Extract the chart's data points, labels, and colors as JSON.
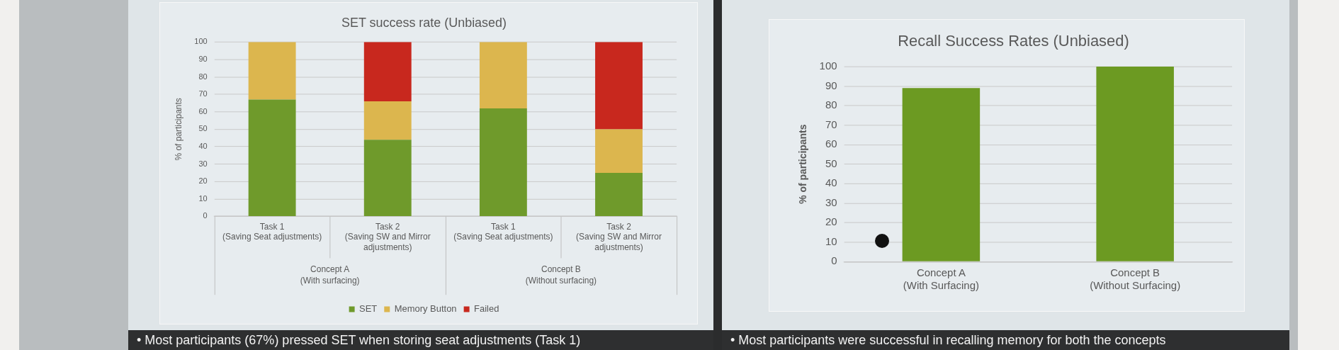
{
  "chart_data": [
    {
      "type": "bar",
      "title": "SET success rate (Unbiased)",
      "ylabel": "% of participants",
      "categories": [
        "Task 1 (Saving Seat adjustments)",
        "Task 2 (Saving SW and Mirror adjustments)",
        "Task 1 (Saving Seat adjustments)",
        "Task 2 (Saving SW and Mirror adjustments)"
      ],
      "series": [
        {
          "name": "SET",
          "color": "#6f9a2b",
          "values": [
            67,
            44,
            62,
            25
          ]
        },
        {
          "name": "Memory Button",
          "color": "#dcb64e",
          "values": [
            33,
            22,
            38,
            25
          ]
        },
        {
          "name": "Failed",
          "color": "#c8281e",
          "values": [
            0,
            34,
            0,
            50
          ]
        }
      ],
      "stacked": true,
      "ylim": [
        0,
        100
      ],
      "yticks": [
        0,
        10,
        20,
        30,
        40,
        50,
        60,
        70,
        80,
        90,
        100
      ],
      "grid": "y",
      "legend": "bottom",
      "annotations": [
        "Concept A (With surfacing)",
        "Concept B (Without surfacing)"
      ]
    },
    {
      "type": "bar",
      "title": "Recall Success Rates (Unbiased)",
      "ylabel": "% of participants",
      "categories": [
        "Concept A (With Surfacing)",
        "Concept B (Without Surfacing)"
      ],
      "values": [
        89,
        100
      ],
      "color": "#6c9a22",
      "ylim": [
        0,
        100
      ],
      "yticks": [
        0,
        10,
        20,
        30,
        40,
        50,
        60,
        70,
        80,
        90,
        100
      ],
      "grid": "y"
    },
    {
      "type": "other",
      "annotations": [
        "• Most participants (67%) pressed SET when storing seat adjustments (Task 1)"
      ]
    },
    {
      "type": "other",
      "annotations": [
        "• Most participants were successful in recalling memory for both the concepts"
      ]
    }
  ]
}
